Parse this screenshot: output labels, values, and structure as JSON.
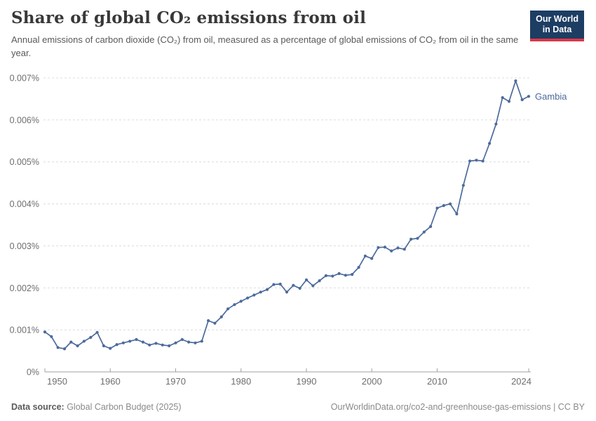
{
  "header": {
    "title": "Share of global CO₂ emissions from oil",
    "subtitle": "Annual emissions of carbon dioxide (CO₂) from oil, measured as a percentage of global emissions of CO₂ from oil in the same year."
  },
  "logo": {
    "line1": "Our World",
    "line2": "in Data"
  },
  "chart_data": {
    "type": "line",
    "title": "Share of global CO2 emissions from oil",
    "entity_label": "Gambia",
    "xlabel": "",
    "ylabel": "",
    "ylim": [
      0,
      0.007
    ],
    "xlim": [
      1950,
      2024
    ],
    "grid": "horizontal-dashed",
    "legend_position": "end-of-line-label",
    "y_ticks": [
      {
        "value": 0,
        "label": "0%"
      },
      {
        "value": 0.001,
        "label": "0.001%"
      },
      {
        "value": 0.002,
        "label": "0.002%"
      },
      {
        "value": 0.003,
        "label": "0.003%"
      },
      {
        "value": 0.004,
        "label": "0.004%"
      },
      {
        "value": 0.005,
        "label": "0.005%"
      },
      {
        "value": 0.006,
        "label": "0.006%"
      },
      {
        "value": 0.007,
        "label": "0.007%"
      }
    ],
    "x_ticks": [
      {
        "value": 1950,
        "label": "1950"
      },
      {
        "value": 1960,
        "label": "1960"
      },
      {
        "value": 1970,
        "label": "1970"
      },
      {
        "value": 1980,
        "label": "1980"
      },
      {
        "value": 1990,
        "label": "1990"
      },
      {
        "value": 2000,
        "label": "2000"
      },
      {
        "value": 2010,
        "label": "2010"
      },
      {
        "value": 2024,
        "label": "2024"
      }
    ],
    "series": [
      {
        "name": "Gambia",
        "color": "#4c6a9c",
        "x": [
          1950,
          1951,
          1952,
          1953,
          1954,
          1955,
          1956,
          1957,
          1958,
          1959,
          1960,
          1961,
          1962,
          1963,
          1964,
          1965,
          1966,
          1967,
          1968,
          1969,
          1970,
          1971,
          1972,
          1973,
          1974,
          1975,
          1976,
          1977,
          1978,
          1979,
          1980,
          1981,
          1982,
          1983,
          1984,
          1985,
          1986,
          1987,
          1988,
          1989,
          1990,
          1991,
          1992,
          1993,
          1994,
          1995,
          1996,
          1997,
          1998,
          1999,
          2000,
          2001,
          2002,
          2003,
          2004,
          2005,
          2006,
          2007,
          2008,
          2009,
          2010,
          2011,
          2012,
          2013,
          2014,
          2015,
          2016,
          2017,
          2018,
          2019,
          2020,
          2021,
          2022,
          2023,
          2024
        ],
        "values": [
          0.00095,
          0.00084,
          0.00058,
          0.00055,
          0.00071,
          0.00062,
          0.00073,
          0.00082,
          0.00094,
          0.00062,
          0.00056,
          0.00065,
          0.00069,
          0.00073,
          0.00077,
          0.00071,
          0.00064,
          0.00068,
          0.00064,
          0.00062,
          0.00069,
          0.00077,
          0.00071,
          0.00069,
          0.00073,
          0.00122,
          0.00116,
          0.00131,
          0.0015,
          0.0016,
          0.00168,
          0.00176,
          0.00183,
          0.0019,
          0.00196,
          0.00208,
          0.00209,
          0.0019,
          0.00206,
          0.00199,
          0.00219,
          0.00205,
          0.00217,
          0.00229,
          0.00228,
          0.00234,
          0.0023,
          0.00232,
          0.00249,
          0.00276,
          0.0027,
          0.00296,
          0.00297,
          0.00288,
          0.00295,
          0.00292,
          0.00316,
          0.00318,
          0.00333,
          0.00346,
          0.0039,
          0.00396,
          0.004,
          0.00376,
          0.00444,
          0.00502,
          0.00504,
          0.00502,
          0.00544,
          0.0059,
          0.00653,
          0.00644,
          0.00693,
          0.00648,
          0.00656
        ]
      }
    ],
    "colors": {
      "line": "#4c6a9c",
      "grid": "#dcdcdc",
      "axis": "#a0a0a0",
      "tick_text": "#6e6e6e"
    }
  },
  "footer": {
    "datasource_label": "Data source:",
    "datasource": " Global Carbon Budget (2025)",
    "link": "OurWorldinData.org/co2-and-greenhouse-gas-emissions | CC BY"
  }
}
